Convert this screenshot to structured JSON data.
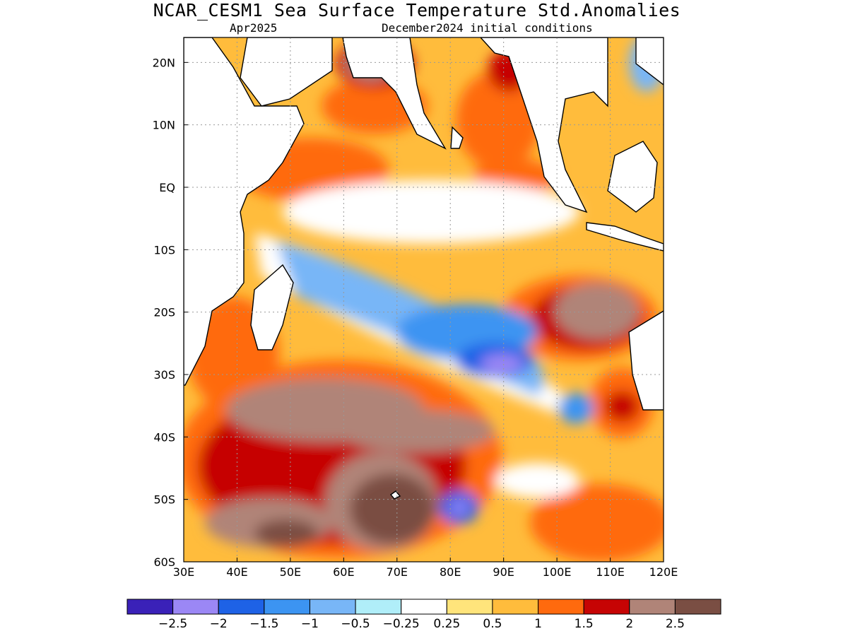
{
  "title": "NCAR_CESM1 Sea Surface Temperature Std.Anomalies",
  "subtitle_left": "Apr2025",
  "subtitle_right": "December2024 initial conditions",
  "map": {
    "lon_range": [
      30,
      120
    ],
    "lat_range": [
      -60,
      24
    ],
    "x_ticks": [
      "30E",
      "40E",
      "50E",
      "60E",
      "70E",
      "80E",
      "90E",
      "100E",
      "110E",
      "120E"
    ],
    "y_ticks": [
      "20N",
      "10N",
      "EQ",
      "10S",
      "20S",
      "30S",
      "40S",
      "50S",
      "60S"
    ],
    "grid": true
  },
  "colorbar": {
    "colors": [
      "#3a21b8",
      "#9b87f5",
      "#1e62e6",
      "#3c94f2",
      "#78b6f7",
      "#b0eef9",
      "#ffffff",
      "#ffe47b",
      "#ffbc3c",
      "#ff6a0e",
      "#c60404",
      "#b08478",
      "#7a4e43"
    ],
    "labels": [
      "−2.5",
      "−2",
      "−1.5",
      "−1",
      "−0.5",
      "−0.25",
      "0.25",
      "0.5",
      "1",
      "1.5",
      "2",
      "2.5"
    ]
  }
}
